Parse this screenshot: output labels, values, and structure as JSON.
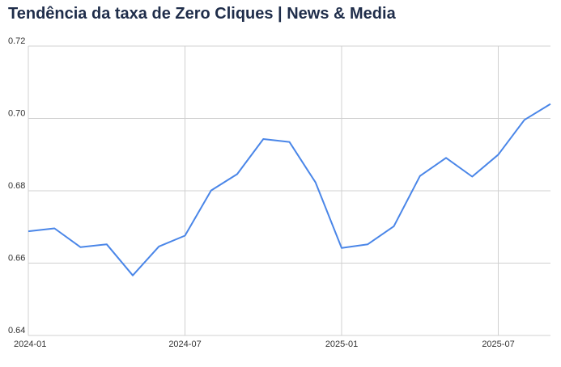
{
  "title": "Tendência da taxa de Zero Cliques | News & Media",
  "colors": {
    "line": "#4a86e8",
    "grid": "#d0d0d0",
    "text": "#333333"
  },
  "chart_data": {
    "type": "line",
    "title": "Tendência da taxa de Zero Cliques | News & Media",
    "xlabel": "",
    "ylabel": "",
    "x": [
      "2024-01",
      "2024-02",
      "2024-03",
      "2024-04",
      "2024-05",
      "2024-06",
      "2024-07",
      "2024-08",
      "2024-09",
      "2024-10",
      "2024-11",
      "2024-12",
      "2025-01",
      "2025-02",
      "2025-03",
      "2025-04",
      "2025-05",
      "2025-06",
      "2025-07",
      "2025-08",
      "2025-09"
    ],
    "values": [
      0.6688,
      0.6696,
      0.6644,
      0.6652,
      0.6566,
      0.6646,
      0.6676,
      0.6801,
      0.6846,
      0.6943,
      0.6935,
      0.6823,
      0.6642,
      0.6652,
      0.6702,
      0.6841,
      0.6891,
      0.6839,
      0.69,
      0.6996,
      0.704
    ],
    "ylim": [
      0.64,
      0.72
    ],
    "yticks": [
      "0.64",
      "0.66",
      "0.68",
      "0.70",
      "0.72"
    ],
    "xticks": [
      "2024-01",
      "2024-07",
      "2025-01",
      "2025-07"
    ],
    "grid": true
  }
}
